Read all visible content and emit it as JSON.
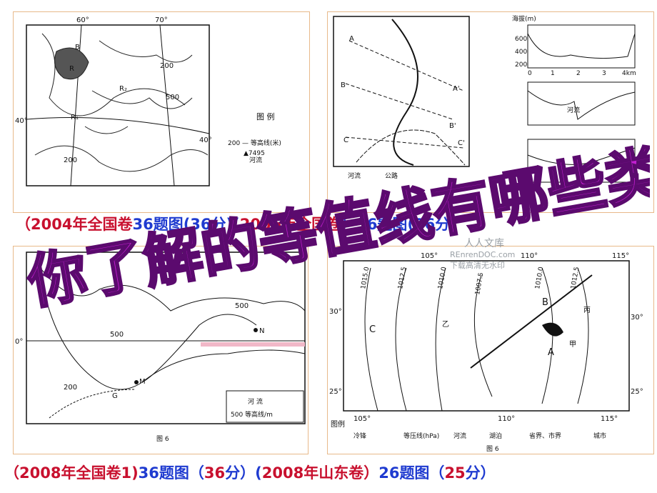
{
  "panels": {
    "top_left": {
      "ticks": [
        "60°",
        "70°",
        "40°",
        "40°"
      ],
      "labels": [
        "200",
        "200",
        "500",
        "R",
        "R₁",
        "R₂",
        "B"
      ],
      "legend_title": "图 例",
      "legend_contour": "200 — 等高线(米)",
      "legend_river": "河流",
      "legend_peak": "▲7495",
      "caption_parts": [
        "（",
        "2004",
        "年全国卷",
        "36题图",
        "(36分)",
        "（",
        "2006",
        "年全国卷",
        "）",
        "题图",
        "(36分)"
      ]
    },
    "top_right": {
      "labels": [
        "A",
        "A'",
        "B",
        "B'",
        "C",
        "C'",
        "河流",
        "公路"
      ],
      "profile_labels": [
        "海拔(m)",
        "600",
        "400",
        "200",
        "河流",
        "0",
        "1",
        "2",
        "3",
        "4km"
      ]
    },
    "bottom_left": {
      "ticks": [
        "0°"
      ],
      "labels": [
        "500",
        "500",
        "N",
        "M",
        "G",
        "200"
      ],
      "legend_river": "河 流",
      "legend_contour": "500 等高线/m",
      "figure": "图 6"
    },
    "bottom_right": {
      "ticks": [
        "105°",
        "110°",
        "115°",
        "30°",
        "30°",
        "25°",
        "25°",
        "105°",
        "110°",
        "115°"
      ],
      "isobars": [
        "1015.0",
        "1012.5",
        "1010.0",
        "1007.5",
        "1010.0",
        "1012.5"
      ],
      "labels": [
        "C",
        "B",
        "A",
        "乙",
        "甲",
        "丙"
      ],
      "legend_title": "图例",
      "legend_items": [
        "冷锋",
        "等压线(hPa)",
        "河流",
        "湖泊",
        "省界、市界",
        "城市"
      ],
      "figure": "图 6"
    }
  },
  "captions": {
    "top": {
      "p1": "（",
      "p2": "2004",
      "p3": "年全国卷",
      "p4": "36题图",
      "p5": "(36分)",
      "p6": "(",
      "p7": "2006",
      "p8": "年全国卷",
      "p9": "）",
      "p10": "36题图",
      "p11": "(36分)"
    },
    "bottom": {
      "p1": "（",
      "p2": "2008",
      "p3": "年全国卷",
      "p4": "1)",
      "p5": "36题图（",
      "p6": "36",
      "p7": "分）",
      "p8": "(",
      "p9": "2008",
      "p10": "年山东卷）",
      "p11": "26",
      "p12": "题图（",
      "p13": "25",
      "p14": "分）"
    }
  },
  "overlay_title": "你了解的等值线有哪些类型?",
  "watermark": {
    "line1": "REnrenDOC.com",
    "line2": "下载高清无水印",
    "brand": "人人文库"
  },
  "colors": {
    "overlay_fill": "#c21fd0",
    "overlay_stroke": "#5b0a6e",
    "caption_red": "#c8102e",
    "caption_blue": "#1f3bd0",
    "panel_border": "#e8b98a"
  }
}
